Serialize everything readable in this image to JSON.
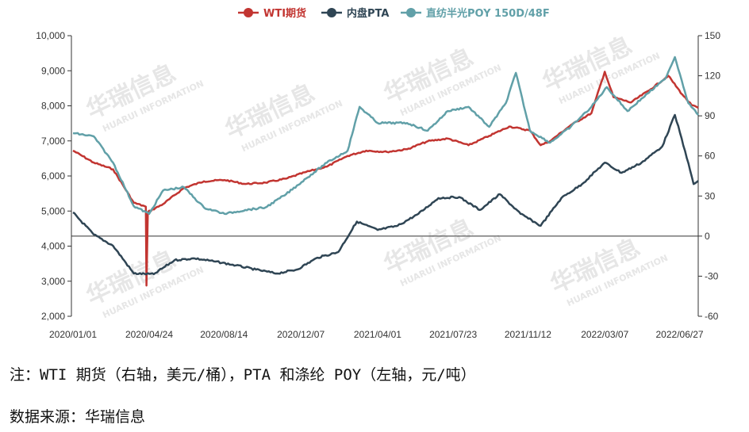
{
  "watermark": {
    "cn": "华瑞信息",
    "en": "HUARUI INFORMATION"
  },
  "chart_data": {
    "type": "line",
    "title": "",
    "legend_position": "top-center",
    "left_axis": {
      "ylim": [
        2000,
        10000
      ],
      "ticks": [
        "2,000",
        "3,000",
        "4,000",
        "5,000",
        "6,000",
        "7,000",
        "8,000",
        "9,000",
        "10,000"
      ]
    },
    "right_axis": {
      "ylim": [
        -60,
        150
      ],
      "ticks": [
        "-60",
        "-30",
        "0",
        "30",
        "60",
        "90",
        "120",
        "150"
      ]
    },
    "x_ticks": [
      "2020/01/01",
      "2020/04/24",
      "2020/08/14",
      "2020/12/07",
      "2021/04/01",
      "2021/07/23",
      "2021/11/12",
      "2022/03/07",
      "2022/06/27"
    ],
    "series": [
      {
        "name": "WTI期货",
        "axis": "right",
        "color": "#c23531",
        "points": [
          [
            "2020/01/01",
            64
          ],
          [
            "2020/02/01",
            55
          ],
          [
            "2020/03/01",
            50
          ],
          [
            "2020/04/01",
            25
          ],
          [
            "2020/04/19",
            22
          ],
          [
            "2020/04/20",
            -37
          ],
          [
            "2020/04/22",
            18
          ],
          [
            "2020/05/15",
            24
          ],
          [
            "2020/06/15",
            36
          ],
          [
            "2020/07/15",
            41
          ],
          [
            "2020/08/15",
            42
          ],
          [
            "2020/09/15",
            39
          ],
          [
            "2020/10/15",
            40
          ],
          [
            "2020/11/15",
            43
          ],
          [
            "2020/12/15",
            48
          ],
          [
            "2021/01/15",
            52
          ],
          [
            "2021/02/15",
            60
          ],
          [
            "2021/03/15",
            64
          ],
          [
            "2021/04/15",
            63
          ],
          [
            "2021/05/15",
            65
          ],
          [
            "2021/06/15",
            71
          ],
          [
            "2021/07/15",
            73
          ],
          [
            "2021/08/15",
            68
          ],
          [
            "2021/09/15",
            75
          ],
          [
            "2021/10/15",
            82
          ],
          [
            "2021/11/15",
            79
          ],
          [
            "2021/12/01",
            68
          ],
          [
            "2021/12/15",
            71
          ],
          [
            "2022/01/15",
            83
          ],
          [
            "2022/02/15",
            92
          ],
          [
            "2022/03/07",
            123
          ],
          [
            "2022/03/20",
            104
          ],
          [
            "2022/04/15",
            100
          ],
          [
            "2022/05/15",
            110
          ],
          [
            "2022/06/10",
            120
          ],
          [
            "2022/07/01",
            106
          ],
          [
            "2022/07/15",
            98
          ],
          [
            "2022/07/25",
            96
          ]
        ]
      },
      {
        "name": "内盘PTA",
        "axis": "left",
        "color": "#2f4554",
        "points": [
          [
            "2020/01/01",
            4960
          ],
          [
            "2020/02/01",
            4330
          ],
          [
            "2020/03/01",
            4010
          ],
          [
            "2020/04/01",
            3220
          ],
          [
            "2020/05/01",
            3200
          ],
          [
            "2020/06/01",
            3600
          ],
          [
            "2020/07/01",
            3650
          ],
          [
            "2020/08/01",
            3560
          ],
          [
            "2020/09/01",
            3450
          ],
          [
            "2020/10/01",
            3330
          ],
          [
            "2020/11/01",
            3220
          ],
          [
            "2020/12/01",
            3330
          ],
          [
            "2021/01/01",
            3670
          ],
          [
            "2021/02/01",
            3830
          ],
          [
            "2021/03/01",
            4700
          ],
          [
            "2021/04/01",
            4460
          ],
          [
            "2021/05/01",
            4580
          ],
          [
            "2021/06/01",
            4920
          ],
          [
            "2021/07/01",
            5370
          ],
          [
            "2021/08/01",
            5400
          ],
          [
            "2021/09/01",
            5030
          ],
          [
            "2021/10/01",
            5480
          ],
          [
            "2021/11/01",
            4920
          ],
          [
            "2021/12/01",
            4580
          ],
          [
            "2022/01/01",
            5370
          ],
          [
            "2022/02/01",
            5770
          ],
          [
            "2022/03/07",
            6380
          ],
          [
            "2022/04/01",
            6090
          ],
          [
            "2022/05/01",
            6380
          ],
          [
            "2022/06/01",
            6840
          ],
          [
            "2022/06/20",
            7740
          ],
          [
            "2022/07/05",
            6720
          ],
          [
            "2022/07/18",
            5770
          ],
          [
            "2022/07/25",
            5860
          ]
        ]
      },
      {
        "name": "直纺半光POY 150D/48F",
        "axis": "left",
        "color": "#61a0a8",
        "points": [
          [
            "2020/01/01",
            7220
          ],
          [
            "2020/02/01",
            7130
          ],
          [
            "2020/03/01",
            6380
          ],
          [
            "2020/04/01",
            5140
          ],
          [
            "2020/04/24",
            4920
          ],
          [
            "2020/05/15",
            5590
          ],
          [
            "2020/06/15",
            5680
          ],
          [
            "2020/07/15",
            5100
          ],
          [
            "2020/08/15",
            4920
          ],
          [
            "2020/09/15",
            5030
          ],
          [
            "2020/10/15",
            5100
          ],
          [
            "2020/11/15",
            5480
          ],
          [
            "2020/12/15",
            5930
          ],
          [
            "2021/01/15",
            6380
          ],
          [
            "2021/02/15",
            6720
          ],
          [
            "2021/03/05",
            7970
          ],
          [
            "2021/04/01",
            7510
          ],
          [
            "2021/05/15",
            7510
          ],
          [
            "2021/06/15",
            7290
          ],
          [
            "2021/07/15",
            7850
          ],
          [
            "2021/08/15",
            7970
          ],
          [
            "2021/09/15",
            7400
          ],
          [
            "2021/10/10",
            8080
          ],
          [
            "2021/10/25",
            8940
          ],
          [
            "2021/11/15",
            7290
          ],
          [
            "2021/12/15",
            6950
          ],
          [
            "2022/01/15",
            7400
          ],
          [
            "2022/02/15",
            7970
          ],
          [
            "2022/03/10",
            8530
          ],
          [
            "2022/04/10",
            7850
          ],
          [
            "2022/05/10",
            8350
          ],
          [
            "2022/06/05",
            8760
          ],
          [
            "2022/06/20",
            9390
          ],
          [
            "2022/07/10",
            8080
          ],
          [
            "2022/07/25",
            7740
          ]
        ]
      }
    ]
  },
  "notes": {
    "line1": "注：WTI 期货（右轴，美元/桶），PTA 和涤纶 POY（左轴，元/吨）",
    "line2": "数据来源：华瑞信息"
  }
}
